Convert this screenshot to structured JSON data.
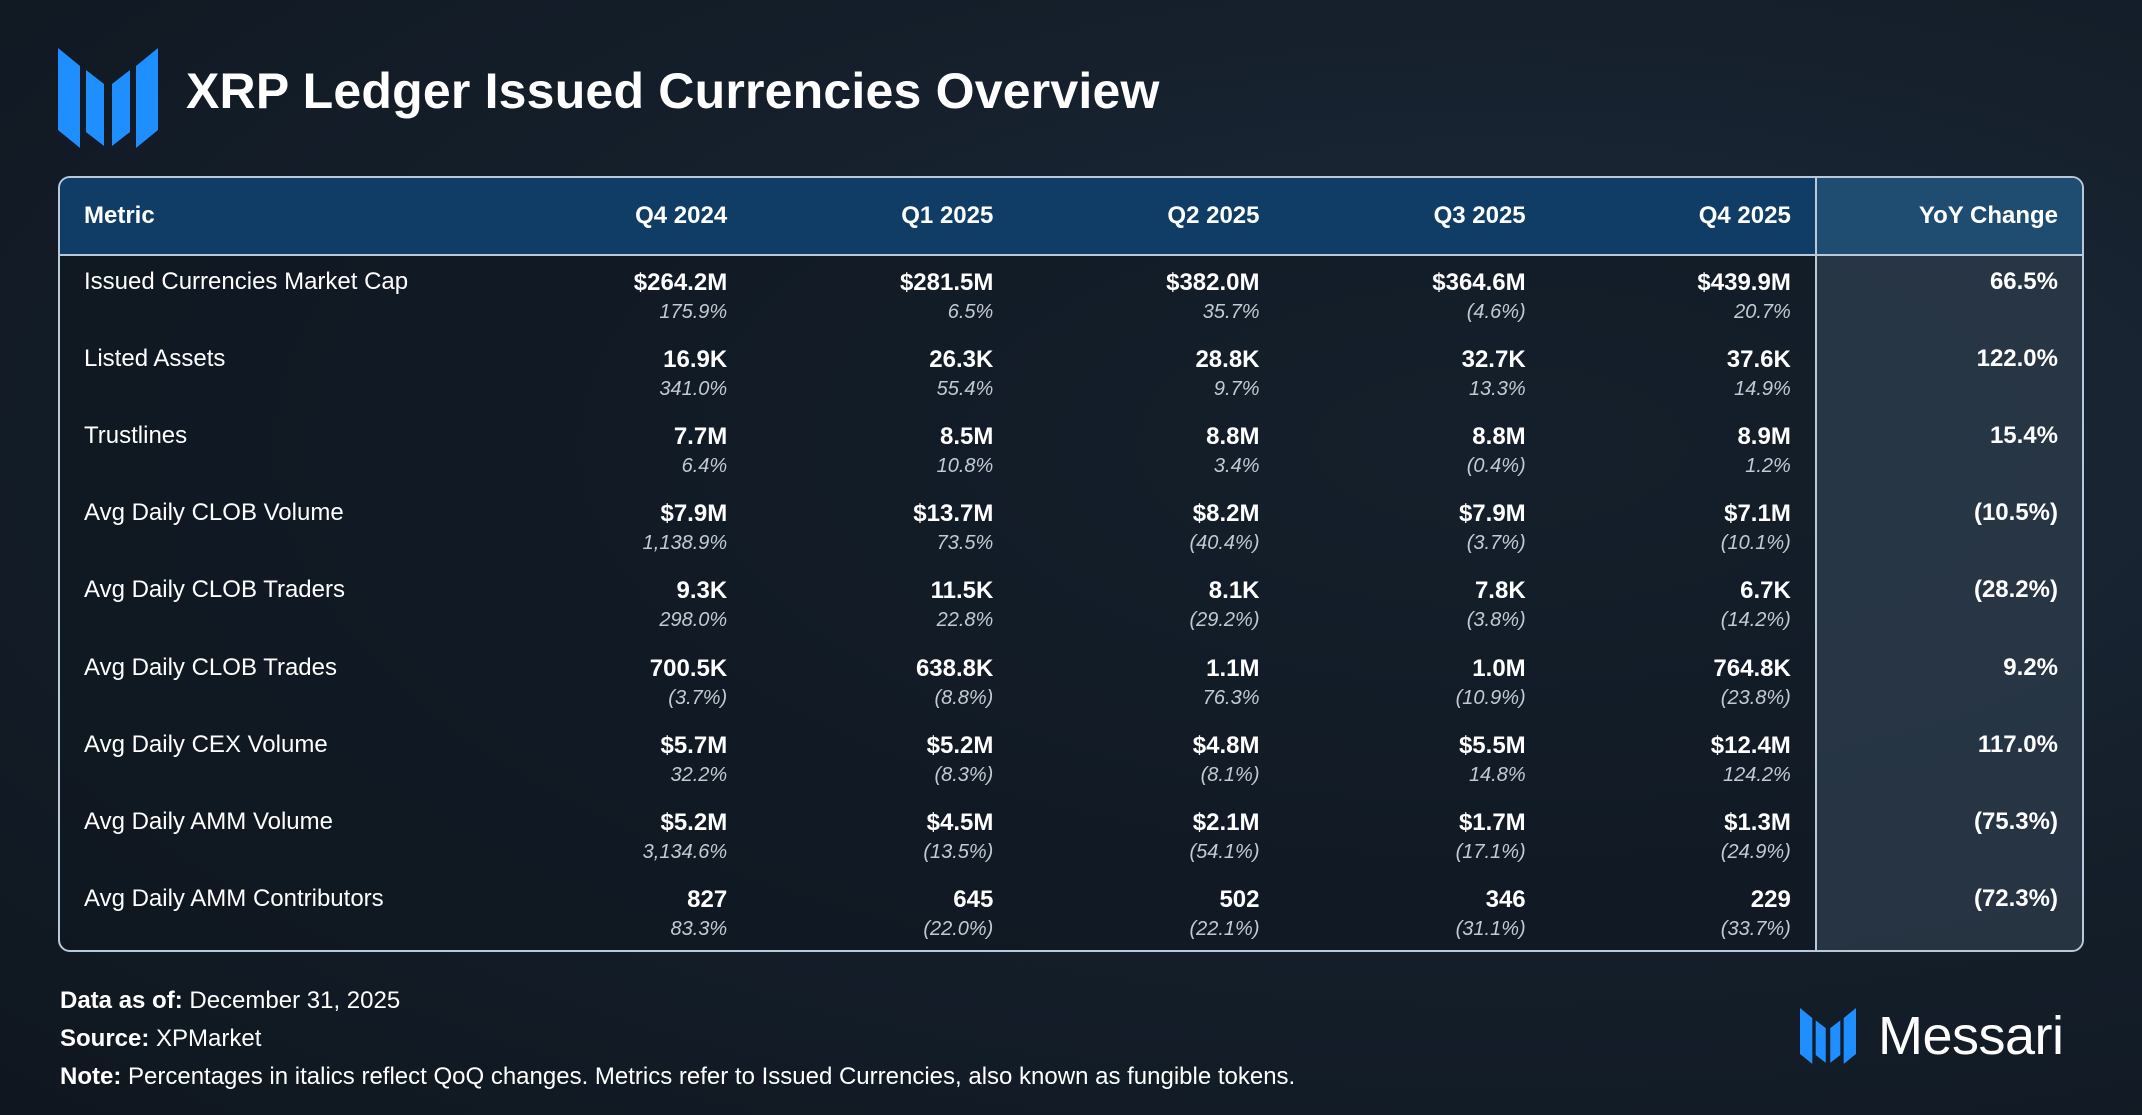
{
  "title": "XRP Ledger Issued Currencies Overview",
  "colors": {
    "accent": "#1f8fff",
    "header_bg": "#0f3d66",
    "border": "#b7c9da"
  },
  "chart_data": {
    "type": "table",
    "title": "XRP Ledger Issued Currencies Overview",
    "columns": [
      "Metric",
      "Q4 2024",
      "Q1 2025",
      "Q2 2025",
      "Q3 2025",
      "Q4 2025",
      "YoY Change"
    ],
    "rows": [
      {
        "metric": "Issued Currencies Market Cap",
        "values": [
          "$264.2M",
          "$281.5M",
          "$382.0M",
          "$364.6M",
          "$439.9M"
        ],
        "changes": [
          "175.9%",
          "6.5%",
          "35.7%",
          "(4.6%)",
          "20.7%"
        ],
        "yoy": "66.5%"
      },
      {
        "metric": "Listed Assets",
        "values": [
          "16.9K",
          "26.3K",
          "28.8K",
          "32.7K",
          "37.6K"
        ],
        "changes": [
          "341.0%",
          "55.4%",
          "9.7%",
          "13.3%",
          "14.9%"
        ],
        "yoy": "122.0%"
      },
      {
        "metric": "Trustlines",
        "values": [
          "7.7M",
          "8.5M",
          "8.8M",
          "8.8M",
          "8.9M"
        ],
        "changes": [
          "6.4%",
          "10.8%",
          "3.4%",
          "(0.4%)",
          "1.2%"
        ],
        "yoy": "15.4%"
      },
      {
        "metric": "Avg Daily CLOB Volume",
        "values": [
          "$7.9M",
          "$13.7M",
          "$8.2M",
          "$7.9M",
          "$7.1M"
        ],
        "changes": [
          "1,138.9%",
          "73.5%",
          "(40.4%)",
          "(3.7%)",
          "(10.1%)"
        ],
        "yoy": "(10.5%)"
      },
      {
        "metric": "Avg Daily CLOB Traders",
        "values": [
          "9.3K",
          "11.5K",
          "8.1K",
          "7.8K",
          "6.7K"
        ],
        "changes": [
          "298.0%",
          "22.8%",
          "(29.2%)",
          "(3.8%)",
          "(14.2%)"
        ],
        "yoy": "(28.2%)"
      },
      {
        "metric": "Avg Daily CLOB Trades",
        "values": [
          "700.5K",
          "638.8K",
          "1.1M",
          "1.0M",
          "764.8K"
        ],
        "changes": [
          "(3.7%)",
          "(8.8%)",
          "76.3%",
          "(10.9%)",
          "(23.8%)"
        ],
        "yoy": "9.2%"
      },
      {
        "metric": "Avg Daily CEX Volume",
        "values": [
          "$5.7M",
          "$5.2M",
          "$4.8M",
          "$5.5M",
          "$12.4M"
        ],
        "changes": [
          "32.2%",
          "(8.3%)",
          "(8.1%)",
          "14.8%",
          "124.2%"
        ],
        "yoy": "117.0%"
      },
      {
        "metric": "Avg Daily AMM Volume",
        "values": [
          "$5.2M",
          "$4.5M",
          "$2.1M",
          "$1.7M",
          "$1.3M"
        ],
        "changes": [
          "3,134.6%",
          "(13.5%)",
          "(54.1%)",
          "(17.1%)",
          "(24.9%)"
        ],
        "yoy": "(75.3%)"
      },
      {
        "metric": "Avg Daily AMM Contributors",
        "values": [
          "827",
          "645",
          "502",
          "346",
          "229"
        ],
        "changes": [
          "83.3%",
          "(22.0%)",
          "(22.1%)",
          "(31.1%)",
          "(33.7%)"
        ],
        "yoy": "(72.3%)"
      }
    ]
  },
  "footer": {
    "data_as_of_label": "Data as of:",
    "data_as_of_value": "December 31, 2025",
    "source_label": "Source:",
    "source_value": "XPMarket",
    "note_label": "Note:",
    "note_value": "Percentages in italics reflect QoQ changes. Metrics refer to Issued Currencies, also known as fungible tokens."
  },
  "brand": {
    "name": "Messari",
    "logo_icon": "messari-logo-icon"
  }
}
